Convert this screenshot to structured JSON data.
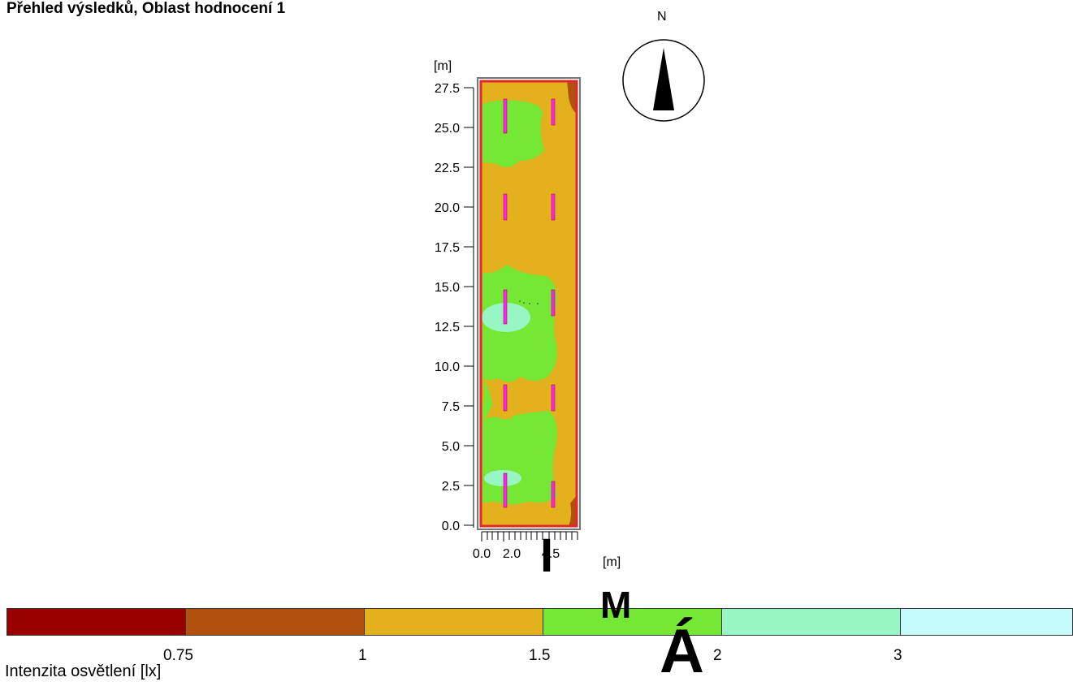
{
  "title": "Přehled výsledků, Oblast hodnocení 1",
  "compass": {
    "label": "N"
  },
  "plot": {
    "y_unit": "[m]",
    "x_unit": "[m]",
    "y_ticks": [
      "27.5",
      "25.0",
      "22.5",
      "20.0",
      "17.5",
      "15.0",
      "12.5",
      "10.0",
      "7.5",
      "5.0",
      "2.5",
      "0.0"
    ],
    "x_ticks": [
      "0.0",
      "2.0",
      "4.5"
    ]
  },
  "legend": {
    "title": "Intenzita osvětlení [lx]",
    "items": [
      {
        "color": "#990000"
      },
      {
        "color": "#b2500d"
      },
      {
        "color": "#e3b11d"
      },
      {
        "color": "#74e834"
      },
      {
        "color": "#98f6c4"
      },
      {
        "color": "#c6fbfd"
      }
    ],
    "values": [
      "0.75",
      "1",
      "1.5",
      "2",
      "3"
    ]
  },
  "overlay_letters": [
    "I",
    "M",
    "Á"
  ],
  "colors": {
    "area_border": "#e3262a",
    "frame": "#777777",
    "luminaire": "#ff22ff"
  }
}
